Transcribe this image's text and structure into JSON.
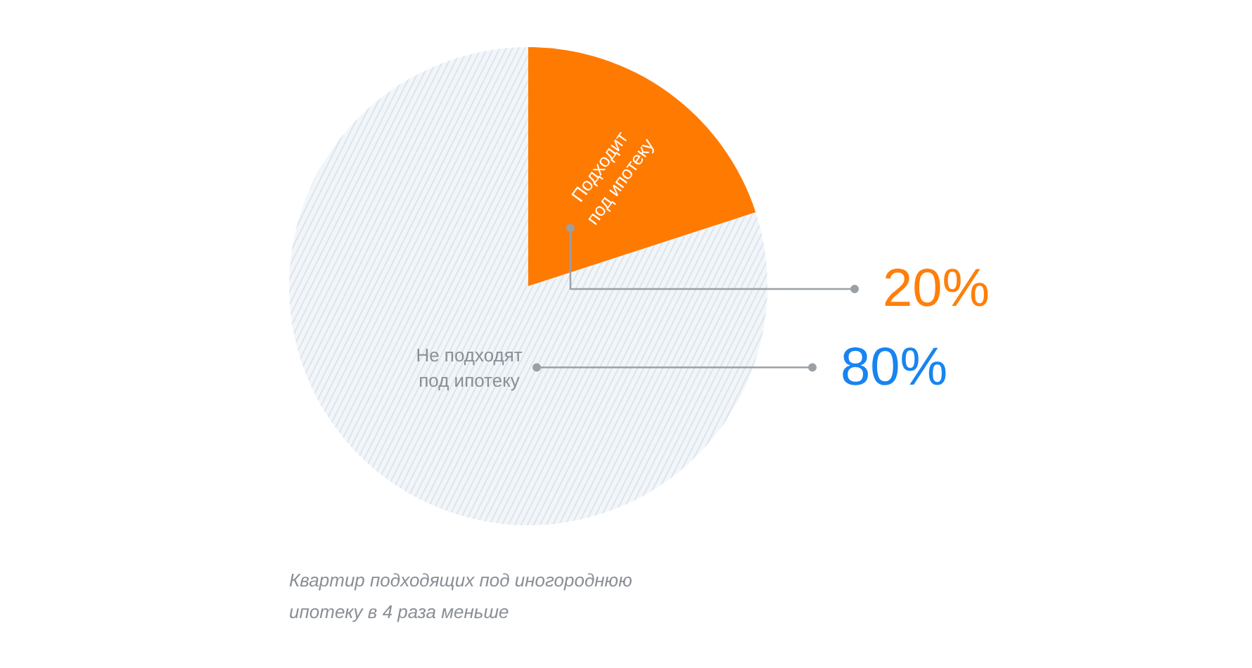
{
  "chart_data": {
    "type": "pie",
    "categories": [
      "Подходит под ипотеку",
      "Не подходят под ипотеку"
    ],
    "values": [
      20,
      80
    ],
    "colors": [
      "#ff7a00",
      "#f1f6fb"
    ],
    "value_labels": [
      "20%",
      "80%"
    ],
    "annotations": [
      "Квартир подходящих под иногороднюю ипотеку в 4 раза меньше"
    ]
  }
}
